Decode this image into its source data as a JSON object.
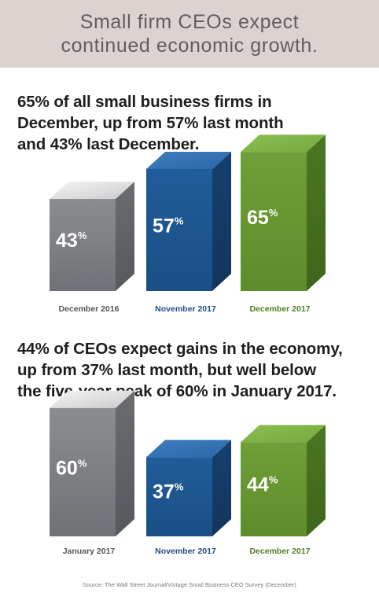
{
  "banner": {
    "line1": "Small firm CEOs expect",
    "line2": "continued economic growth."
  },
  "headline1": {
    "line1": "65% of all small business firms in",
    "line2": "December, up from 57% last month",
    "line3": "and 43% last December."
  },
  "headline2": {
    "line1": "44% of CEOs expect gains in the economy,",
    "line2": "up from 37% last month, but well below",
    "line3": "the five-year peak of 60% in January 2017."
  },
  "source": "Source: The Wall Street Journal/Vistage Small Business CEO Survey (December)",
  "colors": {
    "gray": "#8d8f93",
    "blue": "#1e5794",
    "green": "#6b9a34",
    "label_gray": "#555555",
    "label_blue": "#1f4e86",
    "label_green": "#4f7d24"
  },
  "chart_data": [
    {
      "type": "bar",
      "categories": [
        "December 2016",
        "November 2017",
        "December 2017"
      ],
      "values": [
        43,
        57,
        65
      ],
      "value_labels": [
        "43",
        "57",
        "65"
      ],
      "unit": "%",
      "bar_colors": [
        "gray",
        "blue",
        "green"
      ]
    },
    {
      "type": "bar",
      "categories": [
        "January 2017",
        "November 2017",
        "December 2017"
      ],
      "values": [
        60,
        37,
        44
      ],
      "value_labels": [
        "60",
        "37",
        "44"
      ],
      "unit": "%",
      "bar_colors": [
        "gray",
        "blue",
        "green"
      ]
    }
  ]
}
